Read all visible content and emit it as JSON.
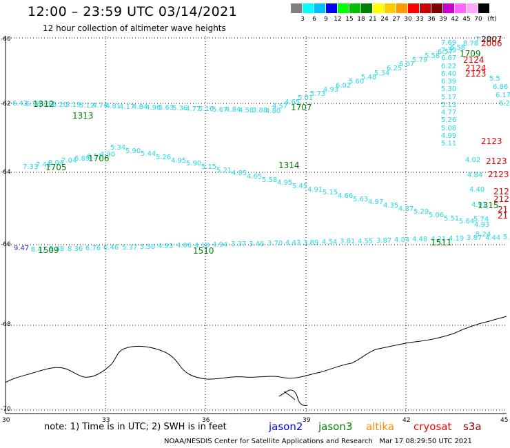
{
  "header": {
    "title": "12:00 – 23:59 UTC 03/14/2021",
    "subtitle": "12 hour collection of altimeter wave heights"
  },
  "color_scale": {
    "labels": [
      "3",
      "6",
      "9",
      "12",
      "15",
      "18",
      "21",
      "24",
      "27",
      "30",
      "33",
      "36",
      "39",
      "42",
      "45",
      "70",
      "(ft)"
    ],
    "colors": [
      "#808080",
      "#00ffff",
      "#00bfff",
      "#0000ff",
      "#00ff00",
      "#00c000",
      "#008000",
      "#ffff00",
      "#ffcc00",
      "#ff9900",
      "#ff0000",
      "#cc0000",
      "#800000",
      "#cc00cc",
      "#ff66ff",
      "#ffaaff",
      "#000000"
    ]
  },
  "axes": {
    "lat_labels": [
      "-60",
      "-62",
      "-64",
      "-66",
      "-68",
      "-70"
    ],
    "lon_labels": [
      "30",
      "33",
      "36",
      "39",
      "42",
      "45"
    ]
  },
  "tracks": {
    "track_1312": [
      "6.42",
      "6.76",
      "6.07",
      "6.20",
      "5.19",
      "5.12",
      "4.74",
      "4.81",
      "4.17",
      "4.84",
      "4.96",
      "5.63",
      "5.36",
      "4.77",
      "5.16",
      "5.67",
      "4.84",
      "4.58",
      "3.88",
      "4.80",
      "4.57",
      "4.65",
      "5.01",
      "5.73",
      "4.93",
      "6.02",
      "5.60",
      "5.48",
      "5.34",
      "6.25",
      "6.07",
      "5.79",
      "5.58",
      "6.57",
      "6.58",
      "8.78",
      "7.27"
    ],
    "track_1705": [
      "7.33",
      "7.41",
      "8.04",
      "7.04",
      "6.89",
      "6.51",
      "4.90",
      "5.34",
      "5.90",
      "5.44",
      "5.26",
      "4.95",
      "5.90",
      "5.15",
      "5.21",
      "4.85",
      "4.65",
      "5.58",
      "4.95",
      "5.45",
      "4.91",
      "5.15",
      "4.66",
      "5.63",
      "4.97",
      "4.35",
      "4.87",
      "5.29",
      "5.06",
      "5.51",
      "5.64",
      "4.93"
    ],
    "track_1509": [
      "9.47",
      "8.47",
      "8.48",
      "8.36",
      "6.76",
      "6.46",
      "5.37",
      "5.50",
      "4.93",
      "4.06",
      "4.10",
      "4.94",
      "3.37",
      "3.46",
      "3.70",
      "4.43",
      "3.89",
      "4.54",
      "3.81",
      "4.55",
      "3.87",
      "4.04",
      "4.48",
      "4.21",
      "4.19",
      "3.87",
      "4.44",
      "5.51"
    ],
    "north_cluster": [
      "7.69",
      "7.39",
      "6.67",
      "6.22",
      "6.40",
      "6.39",
      "5.30",
      "5.17",
      "5.13",
      "4.77",
      "5.26",
      "5.08",
      "4.99",
      "5.11"
    ],
    "south_cluster": [
      "4.02",
      "4.84",
      "4.40",
      "4.91",
      "5.74",
      "5.24",
      "5.5",
      "6.86",
      "6.17",
      "6.29"
    ]
  },
  "pass_ids": {
    "green": [
      "1312",
      "1313",
      "1705",
      "1706",
      "1707",
      "1314",
      "1509",
      "1510",
      "1511",
      "1709",
      "1315"
    ],
    "red": [
      "2124",
      "2124",
      "2123",
      "2123",
      "2123",
      "2123",
      "212",
      "212",
      "21",
      "21",
      "2006"
    ],
    "dark": [
      "2007"
    ]
  },
  "note": "note: 1) Time is in UTC; 2) SWH is in feet",
  "legend": [
    {
      "name": "jason2",
      "color": "#0000ff"
    },
    {
      "name": "jason3",
      "color": "#008000"
    },
    {
      "name": "altika",
      "color": "#ff8c00"
    },
    {
      "name": "cryosat",
      "color": "#ff0000"
    },
    {
      "name": "s3a",
      "color": "#800000"
    }
  ],
  "footer": {
    "credit": "NOAA/NESDIS Center for Satellite Applications and Research",
    "timestamp": "Mar 17 08:29:50 UTC 2021"
  }
}
